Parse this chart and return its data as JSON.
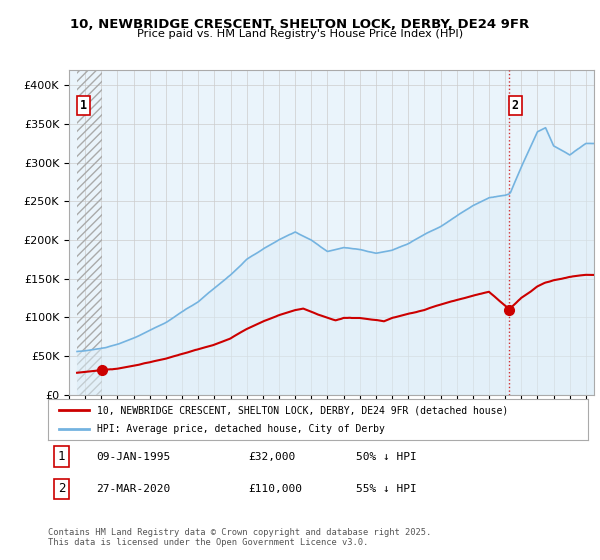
{
  "title": "10, NEWBRIDGE CRESCENT, SHELTON LOCK, DERBY, DE24 9FR",
  "subtitle": "Price paid vs. HM Land Registry's House Price Index (HPI)",
  "xlim_years": [
    1993.5,
    2025.5
  ],
  "ylim": [
    0,
    420000
  ],
  "yticks": [
    0,
    50000,
    100000,
    150000,
    200000,
    250000,
    300000,
    350000,
    400000
  ],
  "ytick_labels": [
    "£0",
    "£50K",
    "£100K",
    "£150K",
    "£200K",
    "£250K",
    "£300K",
    "£350K",
    "£400K"
  ],
  "xticks": [
    1993,
    1994,
    1995,
    1996,
    1997,
    1998,
    1999,
    2000,
    2001,
    2002,
    2003,
    2004,
    2005,
    2006,
    2007,
    2008,
    2009,
    2010,
    2011,
    2012,
    2013,
    2014,
    2015,
    2016,
    2017,
    2018,
    2019,
    2020,
    2021,
    2022,
    2023,
    2024,
    2025
  ],
  "sale1_x": 1995.03,
  "sale1_y": 32000,
  "sale1_label": "1",
  "sale2_x": 2020.24,
  "sale2_y": 110000,
  "sale2_label": "2",
  "hpi_color": "#74b3e0",
  "hpi_fill_color": "#ddeef8",
  "price_color": "#cc0000",
  "hatch_color": "#bbbbbb",
  "background_color": "#ffffff",
  "plot_bg_color": "#eaf4fb",
  "grid_color": "#cccccc",
  "legend_label_price": "10, NEWBRIDGE CRESCENT, SHELTON LOCK, DERBY, DE24 9FR (detached house)",
  "legend_label_hpi": "HPI: Average price, detached house, City of Derby",
  "note1_num": "1",
  "note1_date": "09-JAN-1995",
  "note1_price": "£32,000",
  "note1_hpi": "50% ↓ HPI",
  "note2_num": "2",
  "note2_date": "27-MAR-2020",
  "note2_price": "£110,000",
  "note2_hpi": "55% ↓ HPI",
  "footer": "Contains HM Land Registry data © Crown copyright and database right 2025.\nThis data is licensed under the Open Government Licence v3.0."
}
